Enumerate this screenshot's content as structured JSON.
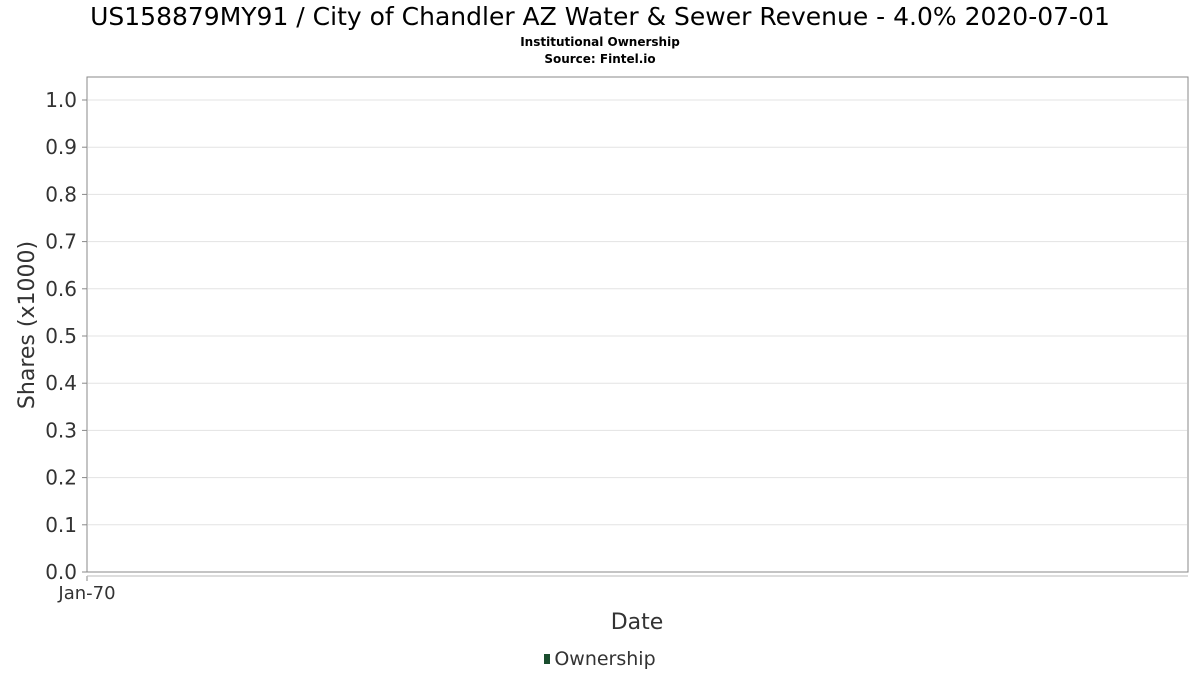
{
  "chart_data": {
    "type": "area",
    "title": "US158879MY91 / City of Chandler AZ Water & Sewer Revenue - 4.0% 2020-07-01",
    "subtitle": "Institutional Ownership",
    "source": "Source: Fintel.io",
    "xlabel": "Date",
    "ylabel": "Shares (x1000)",
    "ylim": [
      0,
      1.0
    ],
    "yticks": [
      "0.0",
      "0.1",
      "0.2",
      "0.3",
      "0.4",
      "0.5",
      "0.6",
      "0.7",
      "0.8",
      "0.9",
      "1.0"
    ],
    "xticks": [
      "Jan-70"
    ],
    "grid": true,
    "legend_position": "bottom-center",
    "series": [
      {
        "name": "Ownership",
        "color": "#1a4d2e",
        "x": [],
        "values": []
      }
    ]
  }
}
